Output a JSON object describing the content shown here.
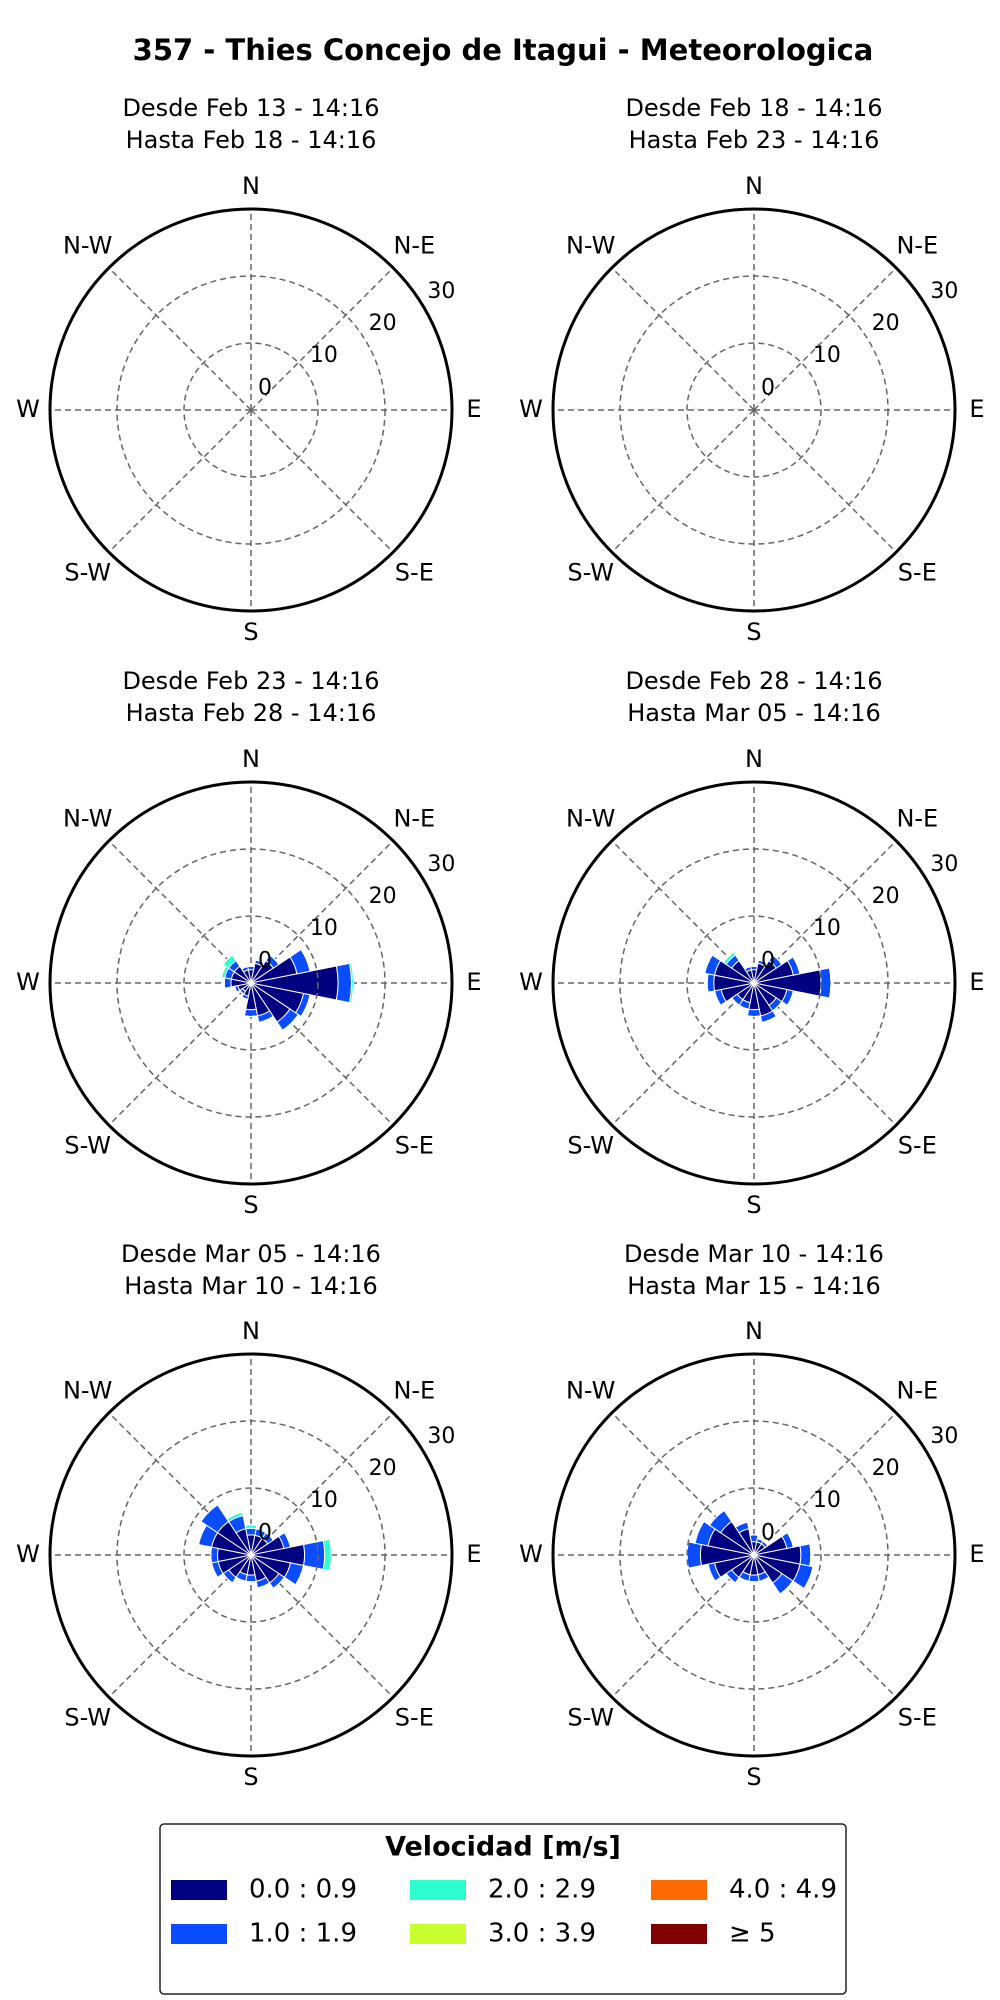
{
  "title": "357 - Thies Concejo de Itagui - Meteorologica",
  "legend_title": "Velocidad [m/s]",
  "chart_data": [
    {
      "type": "windrose",
      "subtitle": [
        "Desde Feb 13 - 14:16",
        "Hasta Feb 18 - 14:16"
      ],
      "compass": [
        "N",
        "N-E",
        "E",
        "S-E",
        "S",
        "S-W",
        "W",
        "N-W"
      ],
      "rlim": [
        0,
        30
      ],
      "rticks": [
        0,
        10,
        20,
        30
      ],
      "series": [
        {
          "name": "0.0 : 0.9",
          "color": "#000080",
          "values": [
            0,
            0,
            0,
            0,
            0,
            0,
            0,
            0,
            0,
            0,
            0,
            0,
            0,
            0,
            0,
            0
          ]
        },
        {
          "name": "1.0 : 1.9",
          "color": "#0a4cff",
          "values": [
            0,
            0,
            0,
            0,
            0,
            0,
            0,
            0,
            0,
            0,
            0,
            0,
            0,
            0,
            0,
            0
          ]
        },
        {
          "name": "2.0 : 2.9",
          "color": "#2effd0",
          "values": [
            0,
            0,
            0,
            0,
            0,
            0,
            0,
            0,
            0,
            0,
            0,
            0,
            0,
            0,
            0,
            0
          ]
        },
        {
          "name": "3.0 : 3.9",
          "color": "#c8ff2e",
          "values": [
            0,
            0,
            0,
            0,
            0,
            0,
            0,
            0,
            0,
            0,
            0,
            0,
            0,
            0,
            0,
            0
          ]
        },
        {
          "name": "4.0 : 4.9",
          "color": "#ff6a00",
          "values": [
            0,
            0,
            0,
            0,
            0,
            0,
            0,
            0,
            0,
            0,
            0,
            0,
            0,
            0,
            0,
            0
          ]
        },
        {
          "name": "≥ 5",
          "color": "#800000",
          "values": [
            0,
            0,
            0,
            0,
            0,
            0,
            0,
            0,
            0,
            0,
            0,
            0,
            0,
            0,
            0,
            0
          ]
        }
      ]
    },
    {
      "type": "windrose",
      "subtitle": [
        "Desde Feb 18 - 14:16",
        "Hasta Feb 23 - 14:16"
      ],
      "compass": [
        "N",
        "N-E",
        "E",
        "S-E",
        "S",
        "S-W",
        "W",
        "N-W"
      ],
      "rlim": [
        0,
        30
      ],
      "rticks": [
        0,
        10,
        20,
        30
      ],
      "series": [
        {
          "name": "0.0 : 0.9",
          "color": "#000080",
          "values": [
            0,
            0,
            0,
            0,
            0,
            0,
            0,
            0,
            0,
            0,
            0,
            0,
            0,
            0,
            0,
            0
          ]
        },
        {
          "name": "1.0 : 1.9",
          "color": "#0a4cff",
          "values": [
            0,
            0,
            0,
            0,
            0,
            0,
            0,
            0,
            0,
            0,
            0,
            0,
            0,
            0,
            0,
            0
          ]
        },
        {
          "name": "2.0 : 2.9",
          "color": "#2effd0",
          "values": [
            0,
            0,
            0,
            0,
            0,
            0,
            0,
            0,
            0,
            0,
            0,
            0,
            0,
            0,
            0,
            0
          ]
        },
        {
          "name": "3.0 : 3.9",
          "color": "#c8ff2e",
          "values": [
            0,
            0,
            0,
            0,
            0,
            0,
            0,
            0,
            0,
            0,
            0,
            0,
            0,
            0,
            0,
            0
          ]
        },
        {
          "name": "4.0 : 4.9",
          "color": "#ff6a00",
          "values": [
            0,
            0,
            0,
            0,
            0,
            0,
            0,
            0,
            0,
            0,
            0,
            0,
            0,
            0,
            0,
            0
          ]
        },
        {
          "name": "≥ 5",
          "color": "#800000",
          "values": [
            0,
            0,
            0,
            0,
            0,
            0,
            0,
            0,
            0,
            0,
            0,
            0,
            0,
            0,
            0,
            0
          ]
        }
      ]
    },
    {
      "type": "windrose",
      "subtitle": [
        "Desde Feb 23 - 14:16",
        "Hasta Feb 28 - 14:16"
      ],
      "compass": [
        "N",
        "N-E",
        "E",
        "S-E",
        "S",
        "S-W",
        "W",
        "N-W"
      ],
      "rlim": [
        0,
        30
      ],
      "rticks": [
        0,
        10,
        20,
        30
      ],
      "series": [
        {
          "name": "0.0 : 0.9",
          "color": "#000080",
          "values": [
            2,
            3,
            4,
            7,
            13,
            8,
            7,
            5,
            4,
            2,
            1.5,
            2,
            3,
            3,
            3,
            2
          ]
        },
        {
          "name": "1.0 : 1.9",
          "color": "#0a4cff",
          "values": [
            0.5,
            0.5,
            1,
            2,
            2,
            1,
            1.5,
            1,
            1,
            0.5,
            0.5,
            0.5,
            1,
            1,
            1,
            0.5
          ]
        },
        {
          "name": "2.0 : 2.9",
          "color": "#2effd0",
          "values": [
            0,
            0,
            0,
            0,
            0.3,
            0,
            0,
            0,
            0,
            0,
            0,
            0,
            0,
            0.5,
            1,
            0
          ]
        },
        {
          "name": "3.0 : 3.9",
          "color": "#c8ff2e",
          "values": [
            0,
            0,
            0,
            0,
            0,
            0,
            0,
            0,
            0,
            0,
            0,
            0,
            0,
            0,
            0,
            0
          ]
        },
        {
          "name": "4.0 : 4.9",
          "color": "#ff6a00",
          "values": [
            0,
            0,
            0,
            0,
            0,
            0,
            0,
            0,
            0,
            0,
            0,
            0,
            0,
            0,
            0,
            0
          ]
        },
        {
          "name": "≥ 5",
          "color": "#800000",
          "values": [
            0,
            0,
            0,
            0,
            0,
            0,
            0,
            0,
            0,
            0,
            0,
            0,
            0,
            0,
            0,
            0
          ]
        }
      ]
    },
    {
      "type": "windrose",
      "subtitle": [
        "Desde Feb 28 - 14:16",
        "Hasta Mar 05 - 14:16"
      ],
      "compass": [
        "N",
        "N-E",
        "E",
        "S-E",
        "S",
        "S-W",
        "W",
        "N-W"
      ],
      "rlim": [
        0,
        30
      ],
      "rticks": [
        0,
        10,
        20,
        30
      ],
      "series": [
        {
          "name": "0.0 : 0.9",
          "color": "#000080",
          "values": [
            2,
            3,
            4,
            6,
            10,
            5,
            4,
            5,
            4,
            3,
            3,
            5,
            6,
            6,
            4,
            2
          ]
        },
        {
          "name": "1.0 : 1.9",
          "color": "#0a4cff",
          "values": [
            0.5,
            0.5,
            1,
            1,
            1.5,
            1,
            1,
            1,
            1,
            1,
            1,
            1,
            1,
            1.5,
            1,
            0.5
          ]
        },
        {
          "name": "2.0 : 2.9",
          "color": "#2effd0",
          "values": [
            0,
            0,
            0,
            0,
            0,
            0,
            0,
            0,
            0,
            0,
            0,
            0,
            0,
            0,
            0.5,
            0
          ]
        },
        {
          "name": "3.0 : 3.9",
          "color": "#c8ff2e",
          "values": [
            0,
            0,
            0,
            0,
            0,
            0,
            0,
            0,
            0,
            0,
            0,
            0,
            0,
            0,
            0,
            0
          ]
        },
        {
          "name": "4.0 : 4.9",
          "color": "#ff6a00",
          "values": [
            0,
            0,
            0,
            0,
            0,
            0,
            0,
            0,
            0,
            0,
            0,
            0,
            0,
            0,
            0,
            0
          ]
        },
        {
          "name": "≥ 5",
          "color": "#800000",
          "values": [
            0,
            0,
            0,
            0,
            0,
            0,
            0,
            0,
            0,
            0,
            0,
            0,
            0,
            0,
            0,
            0
          ]
        }
      ]
    },
    {
      "type": "windrose",
      "subtitle": [
        "Desde Mar 05 - 14:16",
        "Hasta Mar 10 - 14:16"
      ],
      "compass": [
        "N",
        "N-E",
        "E",
        "S-E",
        "S",
        "S-W",
        "W",
        "N-W"
      ],
      "rlim": [
        0,
        30
      ],
      "rticks": [
        0,
        10,
        20,
        30
      ],
      "series": [
        {
          "name": "0.0 : 0.9",
          "color": "#000080",
          "values": [
            3,
            3,
            3,
            5,
            8,
            6,
            5,
            4,
            3,
            3,
            4,
            5,
            5,
            6,
            6,
            4
          ]
        },
        {
          "name": "1.0 : 1.9",
          "color": "#0a4cff",
          "values": [
            1,
            1,
            1,
            1,
            3,
            2,
            1,
            1,
            1,
            1,
            1,
            1,
            1,
            2,
            3,
            2
          ]
        },
        {
          "name": "2.0 : 2.9",
          "color": "#2effd0",
          "values": [
            0.5,
            0,
            0,
            0,
            1,
            0,
            0,
            0,
            0,
            0,
            0,
            0,
            0,
            0,
            0,
            0.5
          ]
        },
        {
          "name": "3.0 : 3.9",
          "color": "#c8ff2e",
          "values": [
            0,
            0,
            0,
            0,
            0,
            0,
            0,
            0,
            0,
            0,
            0,
            0,
            0,
            0,
            0,
            0
          ]
        },
        {
          "name": "4.0 : 4.9",
          "color": "#ff6a00",
          "values": [
            0,
            0,
            0,
            0,
            0,
            0,
            0,
            0,
            0,
            0,
            0,
            0,
            0,
            0,
            0,
            0
          ]
        },
        {
          "name": "≥ 5",
          "color": "#800000",
          "values": [
            0,
            0,
            0,
            0,
            0,
            0,
            0,
            0,
            0,
            0,
            0,
            0,
            0,
            0,
            0,
            0
          ]
        }
      ]
    },
    {
      "type": "windrose",
      "subtitle": [
        "Desde Mar 10 - 14:16",
        "Hasta Mar 15 - 14:16"
      ],
      "compass": [
        "N",
        "N-E",
        "E",
        "S-E",
        "S",
        "S-W",
        "W",
        "N-W"
      ],
      "rlim": [
        0,
        30
      ],
      "rticks": [
        0,
        10,
        20,
        30
      ],
      "series": [
        {
          "name": "0.0 : 0.9",
          "color": "#000080",
          "values": [
            2,
            2,
            2,
            5,
            7,
            7,
            5,
            3,
            3,
            3,
            4,
            6,
            8,
            7,
            6,
            4
          ]
        },
        {
          "name": "1.0 : 1.9",
          "color": "#0a4cff",
          "values": [
            1,
            0.5,
            0.5,
            1,
            1.5,
            2,
            2,
            1,
            1,
            1,
            1,
            1,
            2,
            2,
            2,
            1
          ]
        },
        {
          "name": "2.0 : 2.9",
          "color": "#2effd0",
          "values": [
            0,
            0,
            0,
            0,
            0,
            0,
            0,
            0,
            0,
            0,
            0,
            0,
            0,
            0,
            0,
            0
          ]
        },
        {
          "name": "3.0 : 3.9",
          "color": "#c8ff2e",
          "values": [
            0,
            0,
            0,
            0,
            0,
            0,
            0,
            0,
            0,
            0,
            0,
            0,
            0,
            0,
            0,
            0
          ]
        },
        {
          "name": "4.0 : 4.9",
          "color": "#ff6a00",
          "values": [
            0,
            0,
            0,
            0,
            0,
            0,
            0,
            0,
            0,
            0,
            0,
            0,
            0,
            0,
            0,
            0
          ]
        },
        {
          "name": "≥ 5",
          "color": "#800000",
          "values": [
            0,
            0,
            0,
            0,
            0,
            0,
            0,
            0,
            0,
            0,
            0,
            0,
            0,
            0,
            0,
            0
          ]
        }
      ]
    }
  ]
}
